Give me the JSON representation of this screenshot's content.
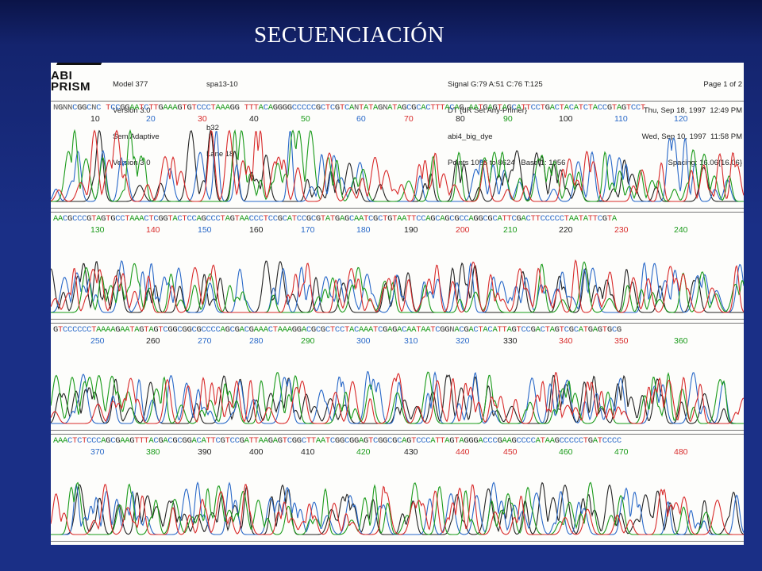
{
  "slide": {
    "title": "SECUENCIACIÓN"
  },
  "header": {
    "left_col": [
      "Model 377",
      "Version 3.0",
      "SemiAdaptive",
      "Version 3.0"
    ],
    "mid_col": [
      "spa13-10",
      "",
      "b32",
      "Lane 18"
    ],
    "center_col": [
      "Signal G:79 A:51 C:76 T:125",
      "DT {dR Set Any-Primer}",
      "abi4_big_dye",
      "Points 1056 to 8624   Base 1: 1056"
    ],
    "right_col": [
      "Page 1 of 2",
      "Thu, Sep 18, 1997  12:49 PM",
      "Wed, Sep 10, 1997  11:58 PM",
      "Spacing: 16.06{16.06}"
    ],
    "logo_top": "ABI",
    "logo_bottom": "PRISM"
  },
  "colors": {
    "A": "#199a19",
    "C": "#2868c8",
    "G": "#222222",
    "T": "#d82a2a"
  },
  "panels": [
    {
      "sequence": "NGNNCGGCNC TCCGGAATCTTGAAAGTGTCCCTAAAGG TTTACAGGGGCCCCCGCTCGTCANTATAGNATAGCGCACTTTACAG AATGAGTAGCATTCCTGACTACATCTACCGTAGTCCT",
      "ticks": [
        {
          "label": "10",
          "color": "black"
        },
        {
          "label": "20",
          "color": "blue"
        },
        {
          "label": "30",
          "color": "red"
        },
        {
          "label": "40",
          "color": "black"
        },
        {
          "label": "50",
          "color": "green"
        },
        {
          "label": "60",
          "color": "blue"
        },
        {
          "label": "70",
          "color": "red"
        },
        {
          "label": "80",
          "color": "black"
        },
        {
          "label": "90",
          "color": "green"
        },
        {
          "label": "100",
          "color": "black"
        },
        {
          "label": "110",
          "color": "blue"
        },
        {
          "label": "120",
          "color": "blue"
        }
      ]
    },
    {
      "sequence": "AACGCCCGTAGTGCCTAAACTCGGTACTCCAGCCCTAGTAACCCTCCGCATCCGCGTATGAGCAATCGCTGTAATTCCAGCAGCGCCAGGCGCATTCGACTTCCCCCTAATATTCGTA",
      "ticks": [
        {
          "label": "130",
          "color": "green"
        },
        {
          "label": "140",
          "color": "red"
        },
        {
          "label": "150",
          "color": "blue"
        },
        {
          "label": "160",
          "color": "black"
        },
        {
          "label": "170",
          "color": "blue"
        },
        {
          "label": "180",
          "color": "blue"
        },
        {
          "label": "190",
          "color": "black"
        },
        {
          "label": "200",
          "color": "red"
        },
        {
          "label": "210",
          "color": "green"
        },
        {
          "label": "220",
          "color": "black"
        },
        {
          "label": "230",
          "color": "red"
        },
        {
          "label": "240",
          "color": "green"
        }
      ]
    },
    {
      "sequence": "GTCCCCCCTAAAAGAATAGTAGTCGGCGGCGCCCCAGCGACGAAACTAAAGGACGCGCTCCTACAAATCGAGACAATAATCGGNACGACTACATTAGTCCGACTAGTCGCATGAGTGCG",
      "ticks": [
        {
          "label": "250",
          "color": "blue"
        },
        {
          "label": "260",
          "color": "black"
        },
        {
          "label": "270",
          "color": "blue"
        },
        {
          "label": "280",
          "color": "blue"
        },
        {
          "label": "290",
          "color": "green"
        },
        {
          "label": "300",
          "color": "blue"
        },
        {
          "label": "310",
          "color": "blue"
        },
        {
          "label": "320",
          "color": "blue"
        },
        {
          "label": "330",
          "color": "black"
        },
        {
          "label": "340",
          "color": "red"
        },
        {
          "label": "350",
          "color": "red"
        },
        {
          "label": "360",
          "color": "green"
        }
      ]
    },
    {
      "sequence": "AAACTCTCCCAGCGAAGTTTACGACGCGGACATTCGTCCGATTAAGAGTCGGCTTAATCGGCGGAGTCGGCGCAGTCCCATTAGTAGGGACCCGAAGCCCCATAAGCCCCCTGATCCCC",
      "ticks": [
        {
          "label": "370",
          "color": "blue"
        },
        {
          "label": "380",
          "color": "green"
        },
        {
          "label": "390",
          "color": "black"
        },
        {
          "label": "400",
          "color": "black"
        },
        {
          "label": "410",
          "color": "black"
        },
        {
          "label": "420",
          "color": "green"
        },
        {
          "label": "430",
          "color": "black"
        },
        {
          "label": "440",
          "color": "red"
        },
        {
          "label": "450",
          "color": "red"
        },
        {
          "label": "460",
          "color": "green"
        },
        {
          "label": "470",
          "color": "green"
        },
        {
          "label": "480",
          "color": "red"
        }
      ]
    }
  ]
}
